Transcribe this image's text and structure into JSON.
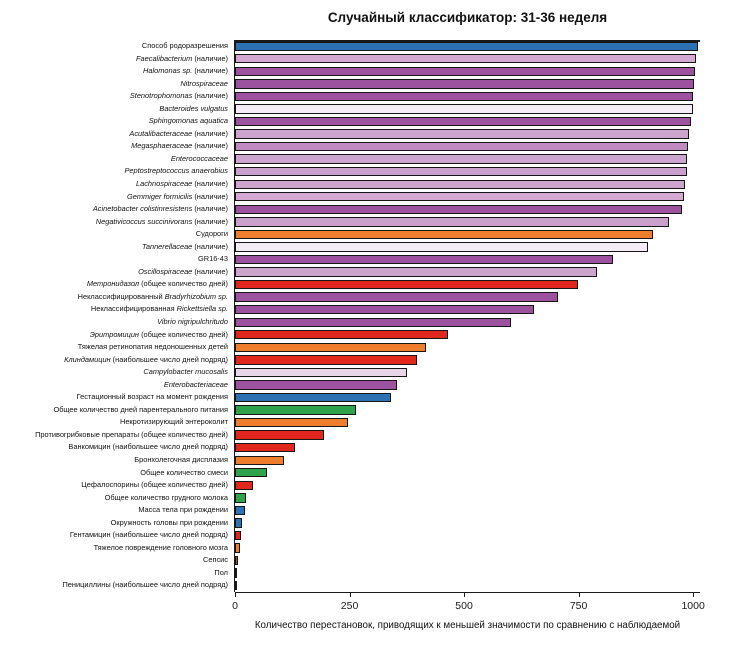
{
  "chart_data": {
    "type": "bar",
    "orientation": "horizontal",
    "title": "Случайный классификатор: 31-36 неделя",
    "xlabel": "Количество перестановок, приводящих к меньшей значимости по сравнению с наблюдаемой",
    "xlim": [
      0,
      1015
    ],
    "xticks": [
      0,
      250,
      500,
      750,
      1000
    ],
    "grid": false,
    "legend": "none",
    "bar_edge_color": "#161616",
    "rows": [
      {
        "label": "Способ родоразрешения",
        "label_parts": [
          {
            "text": "Способ родоразрешения",
            "italic": false
          }
        ],
        "value": 1010,
        "color": "#2c71b2"
      },
      {
        "label": "Faecalibacterium (наличие)",
        "label_parts": [
          {
            "text": "Faecalibacterium",
            "italic": true
          },
          {
            "text": " (наличие)",
            "italic": false
          }
        ],
        "value": 1006,
        "color": "#d4a8d3"
      },
      {
        "label": "Halomonas sp. (наличие)",
        "label_parts": [
          {
            "text": "Halomonas sp.",
            "italic": true
          },
          {
            "text": " (наличие)",
            "italic": false
          }
        ],
        "value": 1003,
        "color": "#9d52a0"
      },
      {
        "label": "Nitrospiraceae",
        "label_parts": [
          {
            "text": "Nitrospiraceae",
            "italic": true
          }
        ],
        "value": 1001,
        "color": "#9d52a0"
      },
      {
        "label": "Stenotrophomonas (наличие)",
        "label_parts": [
          {
            "text": "Stenotrophomonas",
            "italic": true
          },
          {
            "text": " (наличие)",
            "italic": false
          }
        ],
        "value": 1000,
        "color": "#9d52a0"
      },
      {
        "label": "Bacteroides vulgatus",
        "label_parts": [
          {
            "text": "Bacteroides vulgatus",
            "italic": true
          }
        ],
        "value": 1000,
        "color": "#f5edf5"
      },
      {
        "label": "Sphingomonas aquatica",
        "label_parts": [
          {
            "text": "Sphingomonas aquatica",
            "italic": true
          }
        ],
        "value": 996,
        "color": "#9d52a0"
      },
      {
        "label": "Acutalibacteraceae (наличие)",
        "label_parts": [
          {
            "text": "Acutalibacteraceae",
            "italic": true
          },
          {
            "text": " (наличие)",
            "italic": false
          }
        ],
        "value": 991,
        "color": "#cda4ce"
      },
      {
        "label": "Megasphaeraceae (наличие)",
        "label_parts": [
          {
            "text": "Megasphaeraceae",
            "italic": true
          },
          {
            "text": " (наличие)",
            "italic": false
          }
        ],
        "value": 989,
        "color": "#c08bc1"
      },
      {
        "label": "Enterococcaceae",
        "label_parts": [
          {
            "text": "Enterococcaceae",
            "italic": true
          }
        ],
        "value": 987,
        "color": "#cda4ce"
      },
      {
        "label": "Peptostreptococcus anaerobius",
        "label_parts": [
          {
            "text": "Peptostreptococcus anaerobius",
            "italic": true
          }
        ],
        "value": 986,
        "color": "#c99fcb"
      },
      {
        "label": "Lachnospiraceae (наличие)",
        "label_parts": [
          {
            "text": "Lachnospiraceae",
            "italic": true
          },
          {
            "text": " (наличие)",
            "italic": false
          }
        ],
        "value": 982,
        "color": "#cda4ce"
      },
      {
        "label": "Gemmiger formicilis (наличие)",
        "label_parts": [
          {
            "text": "Gemmiger formicilis",
            "italic": true
          },
          {
            "text": " (наличие)",
            "italic": false
          }
        ],
        "value": 980,
        "color": "#d4a8d3"
      },
      {
        "label": "Acinetobacter colistinresistens (наличие)",
        "label_parts": [
          {
            "text": "Acinetobacter colistinresistens",
            "italic": true
          },
          {
            "text": " (наличие)",
            "italic": false
          }
        ],
        "value": 976,
        "color": "#9d52a0"
      },
      {
        "label": "Negativicoccus succinivorans (наличие)",
        "label_parts": [
          {
            "text": "Negativicoccus succinivorans",
            "italic": true
          },
          {
            "text": " (наличие)",
            "italic": false
          }
        ],
        "value": 948,
        "color": "#c99fcb"
      },
      {
        "label": "Судороги",
        "label_parts": [
          {
            "text": "Судороги",
            "italic": false
          }
        ],
        "value": 912,
        "color": "#ee7d2d"
      },
      {
        "label": "Tannerellaceae (наличие)",
        "label_parts": [
          {
            "text": "Tannerellaceae",
            "italic": true
          },
          {
            "text": " (наличие)",
            "italic": false
          }
        ],
        "value": 902,
        "color": "#f5edf5"
      },
      {
        "label": "GR16-43",
        "label_parts": [
          {
            "text": "GR16-43",
            "italic": false
          }
        ],
        "value": 825,
        "color": "#9d52a0"
      },
      {
        "label": "Oscillospiraceae (наличие)",
        "label_parts": [
          {
            "text": "Oscillospiraceae",
            "italic": true
          },
          {
            "text": " (наличие)",
            "italic": false
          }
        ],
        "value": 790,
        "color": "#cda4ce"
      },
      {
        "label": "Метронидазол (общее количество дней)",
        "label_parts": [
          {
            "text": "Метронидазол",
            "italic": true
          },
          {
            "text": " (общее количество дней)",
            "italic": false
          }
        ],
        "value": 748,
        "color": "#e0261d"
      },
      {
        "label": "Неклассифицированный Bradyrhizobium sp.",
        "label_parts": [
          {
            "text": "Неклассифицированный ",
            "italic": false
          },
          {
            "text": "Bradyrhizobium sp.",
            "italic": true
          }
        ],
        "value": 705,
        "color": "#9d52a0"
      },
      {
        "label": "Неклассифицированная Rickettsiella sp.",
        "label_parts": [
          {
            "text": "Неклассифицированная ",
            "italic": false
          },
          {
            "text": "Rickettsiella sp.",
            "italic": true
          }
        ],
        "value": 653,
        "color": "#9d52a0"
      },
      {
        "label": "Vibrio nigripulchritudo",
        "label_parts": [
          {
            "text": "Vibrio nigripulchritudo",
            "italic": true
          }
        ],
        "value": 602,
        "color": "#9d52a0"
      },
      {
        "label": "Эритромицин (общее количество дней)",
        "label_parts": [
          {
            "text": "Эритромицин",
            "italic": true
          },
          {
            "text": " (общее количество дней)",
            "italic": false
          }
        ],
        "value": 465,
        "color": "#e0261d"
      },
      {
        "label": "Тяжелая ретинопатия недоношенных детей",
        "label_parts": [
          {
            "text": "Тяжелая ретинопатия недоношенных детей",
            "italic": false
          }
        ],
        "value": 418,
        "color": "#ee7d2d"
      },
      {
        "label": "Клиндамицин (наибольшее число дней подряд)",
        "label_parts": [
          {
            "text": "Клиндамицин",
            "italic": true
          },
          {
            "text": " (наибольшее число дней подряд)",
            "italic": false
          }
        ],
        "value": 397,
        "color": "#e0261d"
      },
      {
        "label": "Campylobacter mucosalis",
        "label_parts": [
          {
            "text": "Campylobacter mucosalis",
            "italic": true
          }
        ],
        "value": 375,
        "color": "#e8d5e8"
      },
      {
        "label": "Enterobacteriaceae",
        "label_parts": [
          {
            "text": "Enterobacteriaceae",
            "italic": true
          }
        ],
        "value": 354,
        "color": "#9d52a0"
      },
      {
        "label": "Гестационный возраст на момент рождения",
        "label_parts": [
          {
            "text": "Гестационный возраст на момент рождения",
            "italic": false
          }
        ],
        "value": 340,
        "color": "#2c71b2"
      },
      {
        "label": "Общее количество дней парентерального питания",
        "label_parts": [
          {
            "text": "Общее количество дней парентерального питания",
            "italic": false
          }
        ],
        "value": 264,
        "color": "#2fa34c"
      },
      {
        "label": "Некротизирующий энтероколит",
        "label_parts": [
          {
            "text": "Некротизирующий энтероколит",
            "italic": false
          }
        ],
        "value": 247,
        "color": "#ee7d2d"
      },
      {
        "label": "Противогрибковые препараты (общее количество дней)",
        "label_parts": [
          {
            "text": "Противогрибковые препараты (общее количество дней)",
            "italic": false
          }
        ],
        "value": 194,
        "color": "#e0261d"
      },
      {
        "label": "Ванкомицин (наибольшее число дней подряд)",
        "label_parts": [
          {
            "text": "Ванкомицин (наибольшее число дней подряд)",
            "italic": false
          }
        ],
        "value": 131,
        "color": "#e0261d"
      },
      {
        "label": "Бронхолегочная дисплазия",
        "label_parts": [
          {
            "text": "Бронхолегочная дисплазия",
            "italic": false
          }
        ],
        "value": 107,
        "color": "#ee7d2d"
      },
      {
        "label": "Общее количество смеси",
        "label_parts": [
          {
            "text": "Общее количество смеси",
            "italic": false
          }
        ],
        "value": 70,
        "color": "#2fa34c"
      },
      {
        "label": "Цефалоспорины (общее количество дней)",
        "label_parts": [
          {
            "text": "Цефалоспорины (общее количество дней)",
            "italic": false
          }
        ],
        "value": 39,
        "color": "#e0261d"
      },
      {
        "label": "Общее количество грудного молока",
        "label_parts": [
          {
            "text": "Общее количество грудного молока",
            "italic": false
          }
        ],
        "value": 24,
        "color": "#2fa34c"
      },
      {
        "label": "Масса тела при рождении",
        "label_parts": [
          {
            "text": "Масса тела при рождении",
            "italic": false
          }
        ],
        "value": 22,
        "color": "#2c71b2"
      },
      {
        "label": "Окружность головы при рождении",
        "label_parts": [
          {
            "text": "Окружность головы при рождении",
            "italic": false
          }
        ],
        "value": 16,
        "color": "#2c71b2"
      },
      {
        "label": "Гентамицин (наибольшее число дней подряд)",
        "label_parts": [
          {
            "text": "Гентамицин (наибольшее число дней подряд)",
            "italic": false
          }
        ],
        "value": 14,
        "color": "#e0261d"
      },
      {
        "label": "Тяжелое повреждение головного мозга",
        "label_parts": [
          {
            "text": "Тяжелое повреждение головного мозга",
            "italic": false
          }
        ],
        "value": 12,
        "color": "#ee7d2d"
      },
      {
        "label": "Сепсис",
        "label_parts": [
          {
            "text": "Сепсис",
            "italic": false
          }
        ],
        "value": 7,
        "color": "#96522e"
      },
      {
        "label": "Пол",
        "label_parts": [
          {
            "text": "Пол",
            "italic": false
          }
        ],
        "value": 4,
        "color": "#2e2e2e"
      },
      {
        "label": "Пенициллины (наибольшее число дней подряд)",
        "label_parts": [
          {
            "text": "Пенициллины (наибольшее число дней подряд)",
            "italic": false
          }
        ],
        "value": 2,
        "color": "#2e2e2e"
      }
    ]
  }
}
